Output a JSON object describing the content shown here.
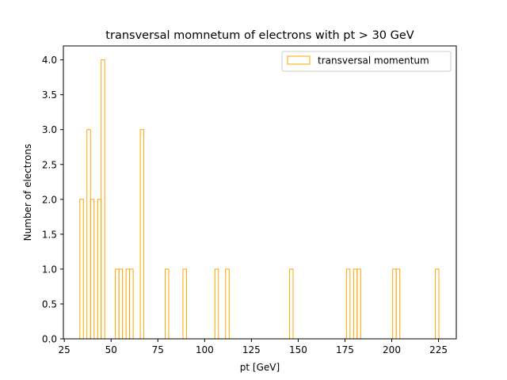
{
  "chart_data": {
    "type": "bar",
    "title": "transversal momnetum of electrons with pt > 30 GeV",
    "xlabel": "pt [GeV]",
    "ylabel": "Number of electrons",
    "xlim": [
      24.5,
      234.5
    ],
    "ylim": [
      0,
      4.2
    ],
    "x_ticks": [
      25,
      50,
      75,
      100,
      125,
      150,
      175,
      200,
      225
    ],
    "y_ticks": [
      0.0,
      0.5,
      1.0,
      1.5,
      2.0,
      2.5,
      3.0,
      3.5,
      4.0
    ],
    "grid": false,
    "legend_position": "upper-right",
    "bin_edges": [
      33.3,
      35.2,
      37.1,
      39.0,
      40.9,
      42.8,
      44.7,
      46.6,
      48.5,
      50.4,
      52.3,
      54.2,
      56.1,
      58.0,
      59.9,
      61.8,
      63.7,
      65.6,
      67.5,
      69.4,
      71.3,
      73.2,
      75.1,
      77.0,
      78.9,
      80.8,
      82.7,
      84.6,
      86.5,
      88.4,
      90.3,
      92.2,
      94.1,
      96.0,
      97.9,
      99.8,
      101.7,
      103.6,
      105.5,
      107.4,
      109.3,
      111.2,
      113.1,
      115.0,
      116.9,
      118.8,
      120.7,
      122.6,
      124.5,
      126.4,
      128.3,
      130.2,
      132.1,
      134.0,
      135.9,
      137.8,
      139.7,
      141.6,
      143.5,
      145.4,
      147.3,
      149.2,
      151.1,
      153.0,
      154.9,
      156.8,
      158.7,
      160.6,
      162.5,
      164.4,
      166.3,
      168.2,
      170.1,
      172.0,
      173.9,
      175.8,
      177.7,
      179.6,
      181.5,
      183.4,
      185.3,
      187.2,
      189.1,
      191.0,
      192.9,
      194.8,
      196.7,
      198.6,
      200.5,
      202.4,
      204.3,
      206.2,
      208.1,
      210.0,
      211.9,
      213.8,
      215.7,
      217.6,
      219.5,
      221.4,
      223.3,
      225.2
    ],
    "series": [
      {
        "name": "transversal momentum",
        "color": "#ffa500",
        "values": [
          2,
          0,
          3,
          2,
          0,
          2,
          4,
          0,
          0,
          0,
          1,
          1,
          0,
          1,
          1,
          0,
          0,
          3,
          0,
          0,
          0,
          0,
          0,
          0,
          1,
          0,
          0,
          0,
          0,
          1,
          0,
          0,
          0,
          0,
          0,
          0,
          0,
          0,
          1,
          0,
          0,
          1,
          0,
          0,
          0,
          0,
          0,
          0,
          0,
          0,
          0,
          0,
          0,
          0,
          0,
          0,
          0,
          0,
          0,
          1,
          0,
          0,
          0,
          0,
          0,
          0,
          0,
          0,
          0,
          0,
          0,
          0,
          0,
          0,
          0,
          1,
          0,
          1,
          1,
          0,
          0,
          0,
          0,
          0,
          0,
          0,
          0,
          0,
          1,
          1,
          0,
          0,
          0,
          0,
          0,
          0,
          0,
          0,
          0,
          0,
          1
        ]
      }
    ]
  }
}
